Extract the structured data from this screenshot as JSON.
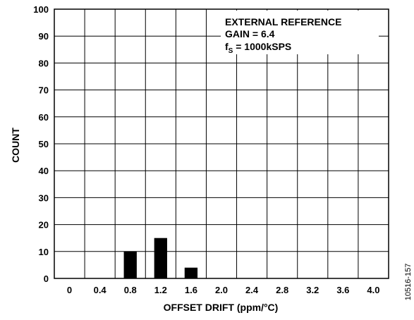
{
  "chart_data": {
    "type": "bar",
    "xlabel": "OFFSET DRIFT (ppm/°C)",
    "ylabel": "COUNT",
    "xlim": [
      -0.2,
      4.2
    ],
    "ylim": [
      0,
      100
    ],
    "x_ticks": [
      "0",
      "0.4",
      "0.8",
      "1.2",
      "1.6",
      "2.0",
      "2.4",
      "2.8",
      "3.2",
      "3.6",
      "4.0"
    ],
    "y_ticks": [
      "0",
      "10",
      "20",
      "30",
      "40",
      "50",
      "60",
      "70",
      "80",
      "90",
      "100"
    ],
    "bars": [
      {
        "x": 0.8,
        "value": 10
      },
      {
        "x": 1.2,
        "value": 15
      },
      {
        "x": 1.6,
        "value": 4
      }
    ],
    "bar_width": 0.17,
    "grid": true,
    "annotation": {
      "line1": "EXTERNAL REFERENCE",
      "line2": "GAIN = 6.4",
      "line3_prefix": "f",
      "line3_sub": "S",
      "line3_suffix": " = 1000kSPS"
    },
    "colors": {
      "bars": "#000000",
      "grid": "#000000",
      "background": "#ffffff"
    }
  },
  "figure_id": "10516-157"
}
